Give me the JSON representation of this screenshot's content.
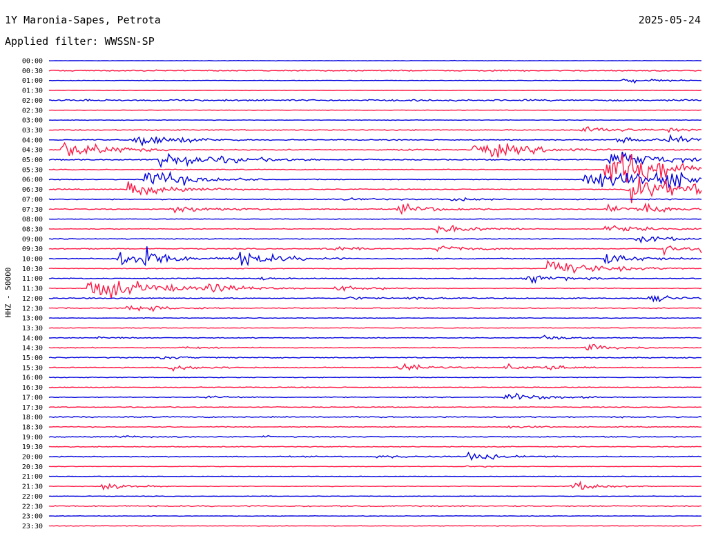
{
  "header": {
    "station": "1Y Maronia-Sapes, Petrota",
    "date": "2025-05-24",
    "filter_label": "Applied filter: WWSSN-SP",
    "y_axis_label": "HHZ - 50000"
  },
  "colors": {
    "even": "#0000dd",
    "odd": "#ff1744"
  },
  "chart_data": {
    "type": "line",
    "title": "1Y Maronia-Sapes, Petrota",
    "date": "2025-05-24",
    "filter": "WWSSN-SP",
    "ylabel": "HHZ - 50000",
    "row_colors": [
      "#0000dd",
      "#ff1744"
    ],
    "rows": [
      "00:00",
      "00:30",
      "01:00",
      "01:30",
      "02:00",
      "02:30",
      "03:00",
      "03:30",
      "04:00",
      "04:30",
      "05:00",
      "05:30",
      "06:00",
      "06:30",
      "07:00",
      "07:30",
      "08:00",
      "08:30",
      "09:00",
      "09:30",
      "10:00",
      "10:30",
      "11:00",
      "11:30",
      "12:00",
      "12:30",
      "13:00",
      "13:30",
      "14:00",
      "14:30",
      "15:00",
      "15:30",
      "16:00",
      "16:30",
      "17:00",
      "17:30",
      "18:00",
      "18:30",
      "19:00",
      "19:30",
      "20:00",
      "20:30",
      "21:00",
      "21:30",
      "22:00",
      "22:30",
      "23:00",
      "23:30"
    ],
    "noise": [
      0.4,
      1.2,
      0.5,
      0.4,
      1.6,
      0.5,
      0.5,
      1.0,
      1.0,
      1.0,
      1.2,
      0.8,
      0.8,
      1.0,
      1.0,
      1.0,
      0.6,
      0.8,
      0.8,
      1.0,
      1.0,
      0.8,
      1.0,
      0.8,
      1.0,
      1.0,
      0.6,
      0.6,
      0.8,
      0.8,
      1.0,
      0.8,
      0.8,
      0.8,
      0.8,
      0.8,
      1.2,
      0.8,
      1.0,
      0.8,
      1.0,
      0.5,
      0.5,
      0.6,
      0.5,
      1.2,
      0.5,
      0.6
    ],
    "events": [
      [
        2,
        0.88,
        5,
        0.05
      ],
      [
        7,
        0.817,
        8,
        0.05
      ],
      [
        7,
        0.95,
        4,
        0.03
      ],
      [
        8,
        0.13,
        14,
        0.06
      ],
      [
        8,
        0.87,
        6,
        0.04
      ],
      [
        8,
        0.95,
        10,
        0.04
      ],
      [
        9,
        0.02,
        22,
        0.06
      ],
      [
        9,
        0.65,
        20,
        0.07
      ],
      [
        9,
        0.52,
        3,
        0.03
      ],
      [
        10,
        0.17,
        18,
        0.08
      ],
      [
        10,
        0.86,
        22,
        0.06
      ],
      [
        11,
        0.853,
        38,
        0.1
      ],
      [
        11,
        0.893,
        10,
        0.05
      ],
      [
        12,
        0.147,
        22,
        0.06
      ],
      [
        12,
        0.82,
        22,
        0.1
      ],
      [
        12,
        0.93,
        20,
        0.05
      ],
      [
        13,
        0.12,
        16,
        0.06
      ],
      [
        13,
        0.885,
        28,
        0.1
      ],
      [
        14,
        0.617,
        5,
        0.03
      ],
      [
        14,
        0.45,
        2,
        0.05
      ],
      [
        15,
        0.184,
        8,
        0.06
      ],
      [
        15,
        0.536,
        10,
        0.05
      ],
      [
        15,
        0.853,
        10,
        0.04
      ],
      [
        15,
        0.91,
        10,
        0.04
      ],
      [
        17,
        0.595,
        8,
        0.06
      ],
      [
        17,
        0.853,
        8,
        0.05
      ],
      [
        18,
        0.9,
        10,
        0.04
      ],
      [
        19,
        0.417,
        6,
        0.04
      ],
      [
        19,
        0.595,
        8,
        0.04
      ],
      [
        19,
        0.943,
        10,
        0.03
      ],
      [
        19,
        1.0,
        9,
        0.02
      ],
      [
        20,
        0.107,
        16,
        0.06
      ],
      [
        20,
        0.28,
        18,
        0.06
      ],
      [
        20,
        0.85,
        12,
        0.05
      ],
      [
        20,
        0.145,
        22,
        0.02
      ],
      [
        21,
        0.765,
        16,
        0.07
      ],
      [
        22,
        0.728,
        9,
        0.05
      ],
      [
        22,
        0.325,
        3,
        0.04
      ],
      [
        23,
        0.06,
        28,
        0.08
      ],
      [
        23,
        0.246,
        8,
        0.05
      ],
      [
        23,
        0.438,
        6,
        0.05
      ],
      [
        24,
        0.92,
        7,
        0.04
      ],
      [
        24,
        0.46,
        3,
        0.03
      ],
      [
        24,
        0.55,
        3,
        0.03
      ],
      [
        25,
        0.12,
        8,
        0.05
      ],
      [
        28,
        0.075,
        3,
        0.03
      ],
      [
        28,
        0.755,
        5,
        0.03
      ],
      [
        29,
        0.82,
        8,
        0.04
      ],
      [
        29,
        0.2,
        2,
        0.05
      ],
      [
        30,
        0.172,
        3,
        0.04
      ],
      [
        31,
        0.184,
        6,
        0.05
      ],
      [
        31,
        0.536,
        9,
        0.04
      ],
      [
        31,
        0.7,
        8,
        0.03
      ],
      [
        31,
        0.755,
        8,
        0.03
      ],
      [
        34,
        0.24,
        3,
        0.04
      ],
      [
        34,
        0.7,
        10,
        0.05
      ],
      [
        37,
        0.7,
        2,
        0.05
      ],
      [
        38,
        0.1,
        2,
        0.04
      ],
      [
        38,
        0.33,
        3,
        0.005
      ],
      [
        40,
        0.5,
        3,
        0.04
      ],
      [
        40,
        0.64,
        8,
        0.05
      ],
      [
        41,
        0.64,
        2,
        0.03
      ],
      [
        43,
        0.08,
        7,
        0.04
      ],
      [
        43,
        0.8,
        10,
        0.04
      ]
    ]
  }
}
